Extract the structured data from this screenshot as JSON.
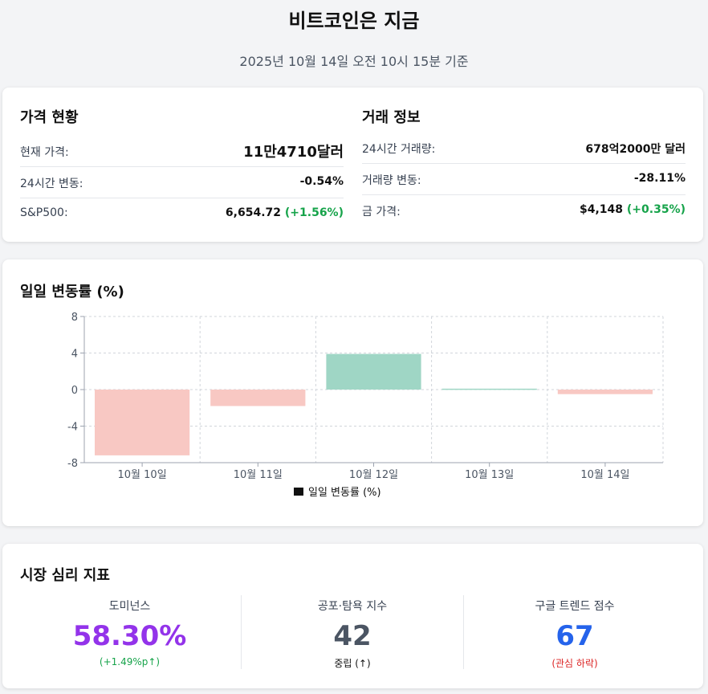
{
  "header": {
    "title": "비트코인은 지금",
    "subtitle": "2025년 10월 14일 오전 10시 15분 기준"
  },
  "prices": {
    "title": "가격 현황",
    "rows": [
      {
        "label": "현재 가격:",
        "value": "11만4710달러"
      },
      {
        "label": "24시간 변동:",
        "value": "-0.54%"
      },
      {
        "label": "S&P500:",
        "value": "6,654.72",
        "change": "(+1.56%)"
      }
    ]
  },
  "trading": {
    "title": "거래 정보",
    "rows": [
      {
        "label": "24시간 거래량:",
        "value": "678억2000만 달러"
      },
      {
        "label": "거래량 변동:",
        "value": "-28.11%"
      },
      {
        "label": "금 가격:",
        "value": "$4,148",
        "change": "(+0.35%)"
      }
    ]
  },
  "chart_title": "일일 변동률 (%)",
  "chart_data": {
    "type": "bar",
    "categories": [
      "10월 10일",
      "10월 11일",
      "10월 12일",
      "10월 13일",
      "10월 14일"
    ],
    "series": [
      {
        "name": "일일 변동률 (%)",
        "values": [
          -7.2,
          -1.8,
          3.9,
          0.1,
          -0.5
        ]
      }
    ],
    "ylim": [
      -8,
      8
    ],
    "yticks": [
      "8",
      "4",
      "0",
      "-4",
      "-8"
    ],
    "grid": true,
    "legend": "bottom",
    "colors": {
      "positive": "#9fd6c5",
      "negative": "#f8c8c3",
      "legend_swatch": "#111111"
    }
  },
  "sentiment": {
    "title": "시장 심리 지표",
    "metrics": [
      {
        "label": "도미넌스",
        "value": "58.30%",
        "note": "(+1.49%p↑)",
        "color": "#9333ea",
        "note_color": "#16a34a"
      },
      {
        "label": "공포·탐욕 지수",
        "value": "42",
        "note": "중립 (↑)",
        "color": "#4b5563",
        "note_color": "#111111"
      },
      {
        "label": "구글 트렌드 점수",
        "value": "67",
        "note": "(관심 하락)",
        "color": "#2563eb",
        "note_color": "#dc2626"
      }
    ]
  }
}
